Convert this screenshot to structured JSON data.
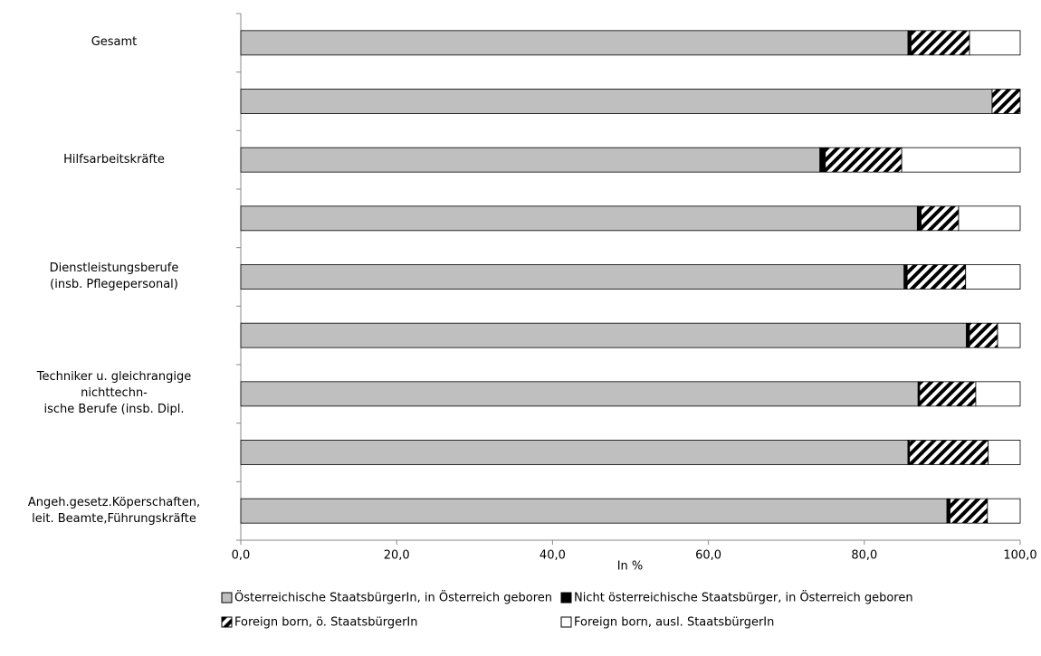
{
  "chart_data": {
    "type": "stacked-bar-horizontal",
    "x_label": "In %",
    "categories": [
      "Gesamt",
      null,
      "Hilfsarbeitskräfte",
      null,
      "Dienstleistungsberufe\n(insb. Pflegepersonal)",
      null,
      "Techniker u. gleichrangige\nnichttechn-\nische Berufe (insb. Dipl.",
      null,
      "Angeh.gesetz.Köperschaften,\nleit. Beamte,Führungskräfte"
    ],
    "series": [
      {
        "name": "Österreichische StaatsbürgerIn, in Österreich geboren",
        "color": "#bfbfbf",
        "hatch": false,
        "values": [
          85.6,
          96.4,
          74.3,
          86.8,
          85.1,
          93.1,
          86.9,
          85.6,
          90.6
        ]
      },
      {
        "name": "Nicht österreichische Staatsbürger, in Österreich geboren",
        "color": "#000000",
        "hatch": false,
        "values": [
          0.4,
          0.0,
          0.7,
          0.5,
          0.4,
          0.4,
          0.2,
          0.2,
          0.4
        ]
      },
      {
        "name": "Foreign born, ö. StaatsbürgerIn",
        "color": "#000000",
        "hatch": true,
        "values": [
          7.5,
          3.6,
          9.8,
          4.8,
          7.5,
          3.6,
          7.2,
          10.1,
          4.8
        ]
      },
      {
        "name": "Foreign born, ausl. StaatsbürgerIn",
        "color": "#ffffff",
        "hatch": false,
        "values": [
          6.5,
          0.0,
          15.2,
          7.9,
          7.0,
          2.9,
          5.7,
          4.1,
          4.2
        ]
      }
    ],
    "xlim": [
      0,
      100
    ],
    "xticks": [
      {
        "value": 0,
        "label": "0,0"
      },
      {
        "value": 20,
        "label": "20,0"
      },
      {
        "value": 40,
        "label": "40,0"
      },
      {
        "value": 60,
        "label": "60,0"
      },
      {
        "value": 80,
        "label": "80,0"
      },
      {
        "value": 100,
        "label": "100,0"
      }
    ]
  }
}
